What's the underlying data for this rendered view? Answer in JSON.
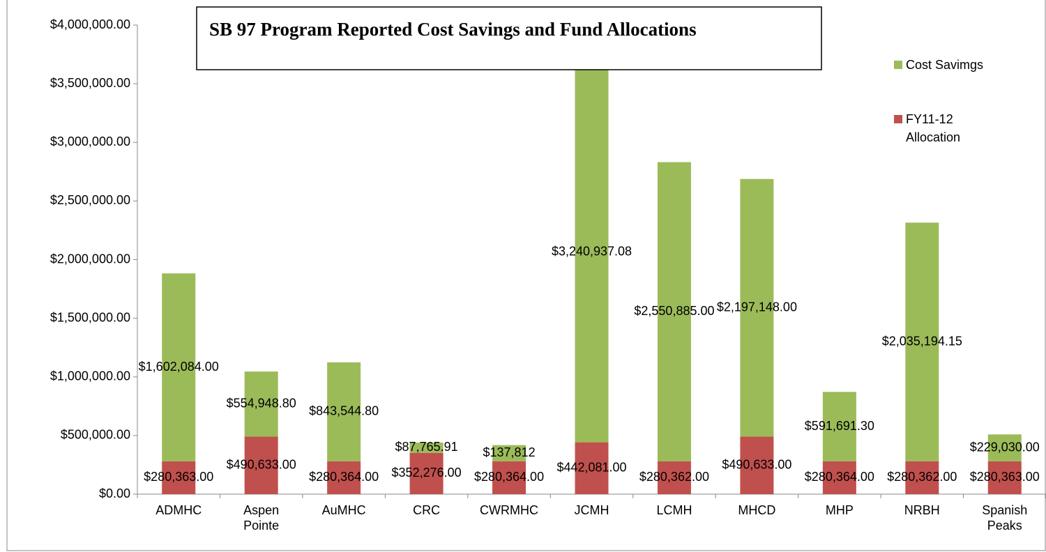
{
  "chart_data": {
    "type": "stacked_bar",
    "title": "SB 97 Program Reported Cost Savings and Fund Allocations",
    "categories": [
      "ADMHC",
      "Aspen Pointe",
      "AuMHC",
      "CRC",
      "CWRMHC",
      "JCMH",
      "LCMH",
      "MHCD",
      "MHP",
      "NRBH",
      "Spanish Peaks"
    ],
    "series": [
      {
        "name": "FY11-12 Allocation",
        "color": "#c0504d",
        "values": [
          280363,
          490633,
          280364,
          352276,
          280364,
          442081,
          280362,
          490633,
          280364,
          280362,
          280363
        ],
        "value_labels": [
          "$280,363.00",
          "$490,633.00",
          "$280,364.00",
          "$352,276.00",
          "$280,364.00",
          "$442,081.00",
          "$280,362.00",
          "$490,633.00",
          "$280,364.00",
          "$280,362.00",
          "$280,363.00"
        ]
      },
      {
        "name": "Cost Savimgs",
        "color": "#9bbb59",
        "values": [
          1602084,
          554948.8,
          843544.8,
          87765.91,
          137812,
          3240937.08,
          2550885,
          2197148,
          591691.3,
          2035194.15,
          229030
        ],
        "value_labels": [
          "$1,602,084.00",
          "$554,948.80",
          "$843,544.80",
          "$87,765.91",
          "$137,812",
          "$3,240,937.08",
          "$2,550,885.00",
          "$2,197,148.00",
          "$591,691.30",
          "$2,035,194.15",
          "$229,030.00"
        ]
      }
    ],
    "ylim": [
      0,
      4000000
    ],
    "yticks": [
      {
        "value": 0,
        "label": "$0.00"
      },
      {
        "value": 500000,
        "label": "$500,000.00"
      },
      {
        "value": 1000000,
        "label": "$1,000,000.00"
      },
      {
        "value": 1500000,
        "label": "$1,500,000.00"
      },
      {
        "value": 2000000,
        "label": "$2,000,000.00"
      },
      {
        "value": 2500000,
        "label": "$2,500,000.00"
      },
      {
        "value": 3000000,
        "label": "$3,000,000.00"
      },
      {
        "value": 3500000,
        "label": "$3,500,000.00"
      },
      {
        "value": 4000000,
        "label": "$4,000,000.00"
      }
    ],
    "legend": "right"
  }
}
